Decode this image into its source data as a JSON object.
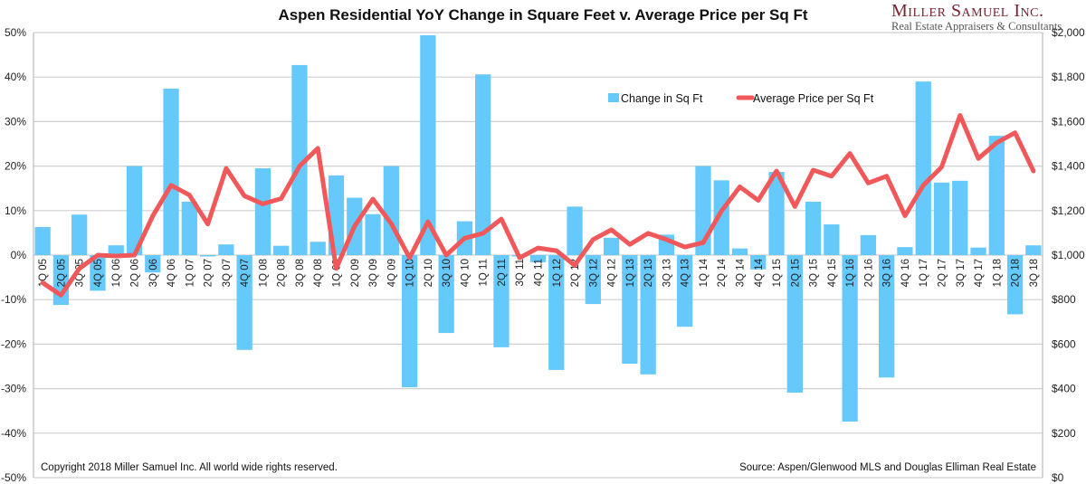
{
  "chart_data": {
    "type": "bar+line",
    "title": "Aspen Residential YoY Change in Square Feet v. Average Price per Sq Ft",
    "categories": [
      "1Q 05",
      "2Q 05",
      "3Q 05",
      "4Q 05",
      "1Q 06",
      "2Q 06",
      "3Q 06",
      "4Q 06",
      "1Q 07",
      "2Q 07",
      "3Q 07",
      "4Q 07",
      "1Q 08",
      "2Q 08",
      "3Q 08",
      "4Q 08",
      "1Q 09",
      "2Q 09",
      "3Q 09",
      "4Q 09",
      "1Q 10",
      "2Q 10",
      "3Q 10",
      "4Q 10",
      "1Q 11",
      "2Q 11",
      "3Q 11",
      "4Q 11",
      "1Q 12",
      "2Q 12",
      "3Q 12",
      "4Q 12",
      "1Q 13",
      "2Q 13",
      "3Q 13",
      "4Q 13",
      "1Q 14",
      "2Q 14",
      "3Q 14",
      "4Q 14",
      "1Q 15",
      "2Q 15",
      "3Q 15",
      "4Q 15",
      "1Q 16",
      "2Q 16",
      "3Q 16",
      "4Q 16",
      "1Q 17",
      "2Q 17",
      "3Q 17",
      "4Q 17",
      "1Q 18",
      "2Q 18",
      "3Q 18"
    ],
    "series": [
      {
        "name": "Change in Sq Ft",
        "type": "bar",
        "axis": "left",
        "color": "#66c9fc",
        "values": [
          6.3,
          -11.2,
          9.1,
          -8.0,
          2.2,
          20.0,
          -3.9,
          37.4,
          12.0,
          -0.3,
          2.4,
          -21.3,
          19.5,
          2.1,
          42.7,
          3.0,
          17.9,
          12.9,
          9.2,
          20.0,
          -29.7,
          49.4,
          -17.5,
          7.6,
          40.6,
          -20.7,
          -0.3,
          -1.6,
          -25.8,
          10.9,
          -11.0,
          3.9,
          -24.4,
          -26.8,
          4.6,
          -16.1,
          20.0,
          16.8,
          1.5,
          -3.2,
          18.7,
          -30.9,
          12.0,
          6.9,
          -37.4,
          4.5,
          -27.5,
          1.8,
          39.0,
          16.3,
          16.7,
          1.7,
          26.8,
          -13.3,
          2.2
        ]
      },
      {
        "name": "Average Price per Sq Ft",
        "type": "line",
        "axis": "right",
        "color": "#f0585a",
        "values": [
          876,
          820,
          940,
          1000,
          996,
          1000,
          1176,
          1314,
          1270,
          1140,
          1390,
          1266,
          1230,
          1254,
          1400,
          1480,
          940,
          1130,
          1252,
          1142,
          988,
          1150,
          1000,
          1076,
          1098,
          1162,
          988,
          1032,
          1020,
          954,
          1070,
          1114,
          1048,
          1098,
          1070,
          1036,
          1056,
          1198,
          1307,
          1246,
          1378,
          1218,
          1382,
          1355,
          1457,
          1324,
          1355,
          1177,
          1314,
          1396,
          1628,
          1434,
          1505,
          1550,
          1378
        ]
      }
    ],
    "y_left": {
      "range": [
        -50,
        50
      ],
      "ticks": [
        "50%",
        "40%",
        "30%",
        "20%",
        "10%",
        "0%",
        "-10%",
        "-20%",
        "-30%",
        "-40%",
        "-50%"
      ]
    },
    "y_right": {
      "range": [
        0,
        2000
      ],
      "ticks": [
        "$2,000",
        "$1,800",
        "$1,600",
        "$1,400",
        "$1,200",
        "$1,000",
        "$800",
        "$600",
        "$400",
        "$200",
        "$0"
      ]
    },
    "legend": {
      "placement": "top-center",
      "entries": [
        "Change in Sq Ft",
        "Average Price per Sq Ft"
      ]
    },
    "grid": true
  },
  "logo": {
    "name": "Miller Samuel Inc.",
    "tagline": "Real Estate Appraisers & Consultants"
  },
  "footer": {
    "copyright": "Copyright 2018 Miller Samuel Inc.  All world wide rights reserved.",
    "source": "Source: Aspen/Glenwood MLS and Douglas Elliman Real Estate"
  }
}
